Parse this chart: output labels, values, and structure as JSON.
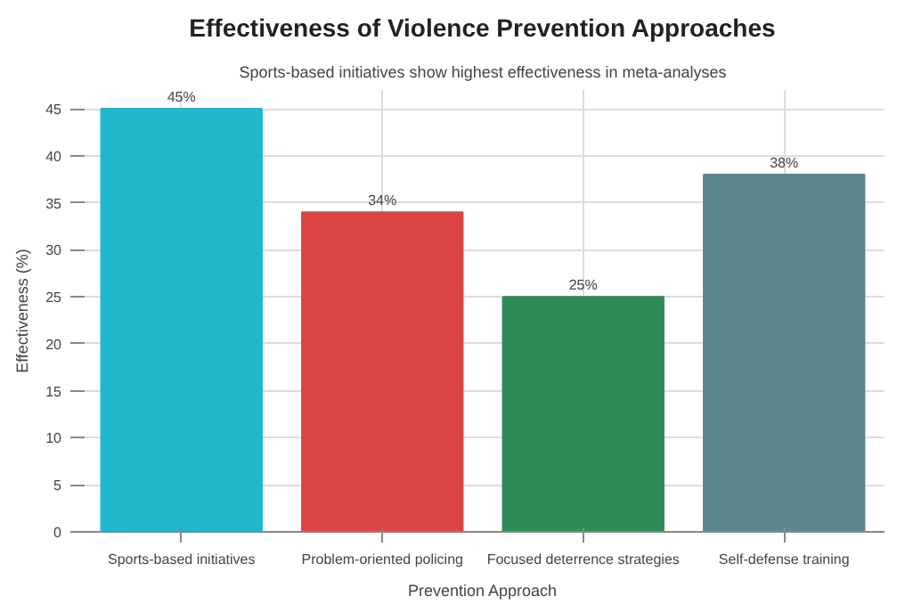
{
  "chart_data": {
    "type": "bar",
    "title": "Effectiveness of Violence Prevention Approaches",
    "subtitle": "Sports-based initiatives show highest effectiveness in meta-analyses",
    "xlabel": "Prevention Approach",
    "ylabel": "Effectiveness (%)",
    "categories": [
      "Sports-based initiatives",
      "Problem-oriented policing",
      "Focused deterrence strategies",
      "Self-defense training"
    ],
    "values": [
      45,
      34,
      25,
      38
    ],
    "colors": [
      "#1fb8cd",
      "#db4545",
      "#2e8b57",
      "#5d878f"
    ],
    "value_labels": [
      "45%",
      "34%",
      "25%",
      "38%"
    ],
    "ylim": [
      0,
      47
    ],
    "yticks": [
      0,
      5,
      10,
      15,
      20,
      25,
      30,
      35,
      40,
      45
    ],
    "grid": true
  }
}
